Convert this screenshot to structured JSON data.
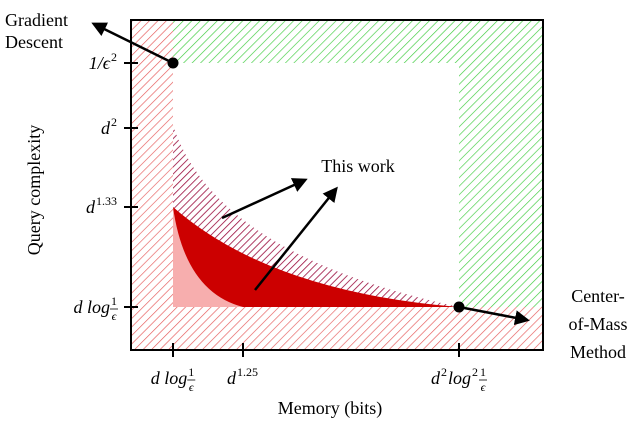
{
  "annotations": {
    "gradient_descent": [
      "Gradient",
      "Descent"
    ],
    "this_work": "This work",
    "center_of_mass": [
      "Center-",
      "of-Mass",
      "Method"
    ]
  },
  "axes": {
    "y_label": "Query complexity",
    "x_label": "Memory (bits)",
    "y_ticks": [
      [
        {
          "text": "1/ϵ"
        },
        {
          "sup": "2"
        }
      ],
      [
        {
          "text": "d"
        },
        {
          "sup": "2"
        }
      ],
      [
        {
          "text": "d"
        },
        {
          "sup": "1.33"
        }
      ],
      [
        {
          "text": "d log "
        },
        {
          "frac": [
            "1",
            "ϵ"
          ]
        }
      ]
    ],
    "x_ticks": [
      [
        {
          "text": "d log "
        },
        {
          "frac": [
            "1",
            "ϵ"
          ]
        }
      ],
      [
        {
          "text": "d"
        },
        {
          "sup": "1.25"
        }
      ],
      [
        {
          "text": "d"
        },
        {
          "sup": "2"
        },
        {
          "text": " log"
        },
        {
          "sup": "2"
        },
        {
          "text": " "
        },
        {
          "frac": [
            "1",
            "ϵ"
          ]
        }
      ]
    ]
  }
}
